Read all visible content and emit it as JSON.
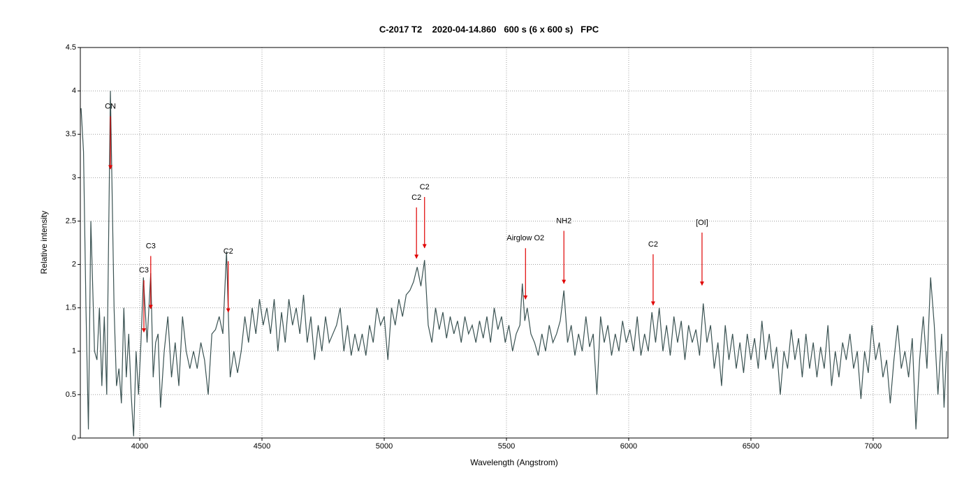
{
  "chart_data": {
    "type": "line",
    "title": "C-2017 T2    2020-04-14.860   600 s (6 x 600 s)   FPC",
    "xlabel": "Wavelength (Angstrom)",
    "ylabel": "Relative intensity",
    "xlim": [
      3757,
      7306
    ],
    "ylim": [
      0,
      4.5
    ],
    "xticks": [
      4000,
      4500,
      5000,
      5500,
      6000,
      6500,
      7000
    ],
    "yticks": [
      0,
      0.5,
      1,
      1.5,
      2,
      2.5,
      3,
      3.5,
      4,
      4.5
    ],
    "grid": true,
    "color": "#3a5252",
    "annotation_color": "#e00000",
    "x": [
      3760,
      3770,
      3780,
      3790,
      3800,
      3815,
      3825,
      3835,
      3845,
      3855,
      3865,
      3880,
      3895,
      3905,
      3915,
      3925,
      3935,
      3945,
      3955,
      3965,
      3975,
      3985,
      3995,
      4005,
      4015,
      4030,
      4045,
      4055,
      4065,
      4075,
      4085,
      4100,
      4115,
      4130,
      4145,
      4160,
      4175,
      4190,
      4205,
      4220,
      4235,
      4250,
      4265,
      4280,
      4295,
      4310,
      4325,
      4340,
      4355,
      4370,
      4385,
      4400,
      4415,
      4430,
      4445,
      4460,
      4475,
      4490,
      4505,
      4520,
      4535,
      4550,
      4565,
      4580,
      4595,
      4610,
      4625,
      4640,
      4655,
      4670,
      4685,
      4700,
      4715,
      4730,
      4745,
      4760,
      4775,
      4790,
      4805,
      4820,
      4835,
      4850,
      4865,
      4880,
      4895,
      4910,
      4925,
      4940,
      4955,
      4970,
      4985,
      5000,
      5015,
      5030,
      5045,
      5060,
      5075,
      5090,
      5105,
      5120,
      5135,
      5150,
      5165,
      5180,
      5195,
      5210,
      5225,
      5240,
      5255,
      5270,
      5285,
      5300,
      5315,
      5330,
      5345,
      5360,
      5375,
      5390,
      5405,
      5420,
      5435,
      5450,
      5465,
      5480,
      5495,
      5510,
      5525,
      5540,
      5555,
      5565,
      5575,
      5585,
      5600,
      5615,
      5630,
      5645,
      5660,
      5675,
      5690,
      5705,
      5720,
      5735,
      5750,
      5765,
      5780,
      5795,
      5810,
      5825,
      5840,
      5855,
      5870,
      5885,
      5900,
      5915,
      5930,
      5945,
      5960,
      5975,
      5990,
      6005,
      6020,
      6035,
      6050,
      6065,
      6080,
      6095,
      6110,
      6125,
      6140,
      6155,
      6170,
      6185,
      6200,
      6215,
      6230,
      6245,
      6260,
      6275,
      6290,
      6305,
      6320,
      6335,
      6350,
      6365,
      6380,
      6395,
      6410,
      6425,
      6440,
      6455,
      6470,
      6485,
      6500,
      6515,
      6530,
      6545,
      6560,
      6575,
      6590,
      6605,
      6620,
      6635,
      6650,
      6665,
      6680,
      6695,
      6710,
      6725,
      6740,
      6755,
      6770,
      6785,
      6800,
      6815,
      6830,
      6845,
      6860,
      6875,
      6890,
      6905,
      6920,
      6935,
      6950,
      6965,
      6980,
      6995,
      7010,
      7025,
      7040,
      7055,
      7070,
      7085,
      7100,
      7115,
      7130,
      7145,
      7160,
      7175,
      7190,
      7205,
      7220,
      7235,
      7250,
      7265,
      7280,
      7290,
      7300
    ],
    "values": [
      3.8,
      3.3,
      1.5,
      0.1,
      2.5,
      1.0,
      0.9,
      1.5,
      0.6,
      1.4,
      0.5,
      4.0,
      1.5,
      0.6,
      0.8,
      0.4,
      1.5,
      0.7,
      1.2,
      0.5,
      0.02,
      1.0,
      0.5,
      1.1,
      1.85,
      1.1,
      1.9,
      0.7,
      1.1,
      1.2,
      0.35,
      1.0,
      1.4,
      0.7,
      1.1,
      0.6,
      1.4,
      1.0,
      0.8,
      1.0,
      0.8,
      1.1,
      0.9,
      0.5,
      1.2,
      1.25,
      1.4,
      1.2,
      2.15,
      0.7,
      1.0,
      0.75,
      1.0,
      1.4,
      1.1,
      1.5,
      1.2,
      1.6,
      1.3,
      1.5,
      1.2,
      1.6,
      1.0,
      1.45,
      1.1,
      1.6,
      1.3,
      1.5,
      1.2,
      1.65,
      1.1,
      1.4,
      0.9,
      1.3,
      1.0,
      1.4,
      1.1,
      1.2,
      1.3,
      1.5,
      1.0,
      1.3,
      0.95,
      1.2,
      1.0,
      1.2,
      0.95,
      1.3,
      1.1,
      1.5,
      1.3,
      1.4,
      0.9,
      1.5,
      1.3,
      1.6,
      1.4,
      1.65,
      1.7,
      1.8,
      1.97,
      1.75,
      2.05,
      1.3,
      1.1,
      1.5,
      1.25,
      1.45,
      1.15,
      1.4,
      1.2,
      1.35,
      1.1,
      1.4,
      1.2,
      1.3,
      1.1,
      1.35,
      1.15,
      1.4,
      1.1,
      1.5,
      1.25,
      1.4,
      1.1,
      1.3,
      1.0,
      1.2,
      1.3,
      1.78,
      1.35,
      1.5,
      1.2,
      1.1,
      0.95,
      1.2,
      1.0,
      1.3,
      1.1,
      1.2,
      1.35,
      1.7,
      1.1,
      1.3,
      0.95,
      1.2,
      1.0,
      1.4,
      1.05,
      1.2,
      0.5,
      1.4,
      1.1,
      1.3,
      0.95,
      1.2,
      1.0,
      1.35,
      1.1,
      1.25,
      1.0,
      1.4,
      0.95,
      1.2,
      1.0,
      1.45,
      1.1,
      1.5,
      1.0,
      1.3,
      0.95,
      1.4,
      1.1,
      1.35,
      0.9,
      1.3,
      1.1,
      1.25,
      0.95,
      1.55,
      1.1,
      1.3,
      0.8,
      1.1,
      0.6,
      1.3,
      0.9,
      1.2,
      0.8,
      1.1,
      0.75,
      1.2,
      0.9,
      1.15,
      0.8,
      1.35,
      0.9,
      1.2,
      0.8,
      1.05,
      0.5,
      1.0,
      0.8,
      1.25,
      0.9,
      1.15,
      0.7,
      1.2,
      0.8,
      1.1,
      0.7,
      1.05,
      0.8,
      1.3,
      0.6,
      1.0,
      0.7,
      1.1,
      0.9,
      1.2,
      0.8,
      1.0,
      0.45,
      1.0,
      0.75,
      1.3,
      0.9,
      1.1,
      0.7,
      0.9,
      0.4,
      0.9,
      1.3,
      0.8,
      1.0,
      0.7,
      1.15,
      0.1,
      0.9,
      1.4,
      0.8,
      1.85,
      1.3,
      0.5,
      1.2,
      0.35,
      1.0
    ],
    "annotations": [
      {
        "text": "CN",
        "x": 3880,
        "y_text": 3.82,
        "y": 3.1
      },
      {
        "text": "C3",
        "x": 4017,
        "y_text": 1.93,
        "y": 1.22
      },
      {
        "text": "C3",
        "x": 4045,
        "y_text": 2.21,
        "y": 1.49
      },
      {
        "text": "C2",
        "x": 4362,
        "y_text": 2.15,
        "y": 1.45
      },
      {
        "text": "C2",
        "x": 5132,
        "y_text": 2.77,
        "y": 2.07
      },
      {
        "text": "C2",
        "x": 5165,
        "y_text": 2.89,
        "y": 2.19
      },
      {
        "text": "Airglow O2",
        "x": 5578,
        "y_text": 2.3,
        "y": 1.6
      },
      {
        "text": "NH2",
        "x": 5735,
        "y_text": 2.5,
        "y": 1.78
      },
      {
        "text": "C2",
        "x": 6100,
        "y_text": 2.23,
        "y": 1.53
      },
      {
        "text": "[OI]",
        "x": 6300,
        "y_text": 2.48,
        "y": 1.76
      }
    ]
  }
}
